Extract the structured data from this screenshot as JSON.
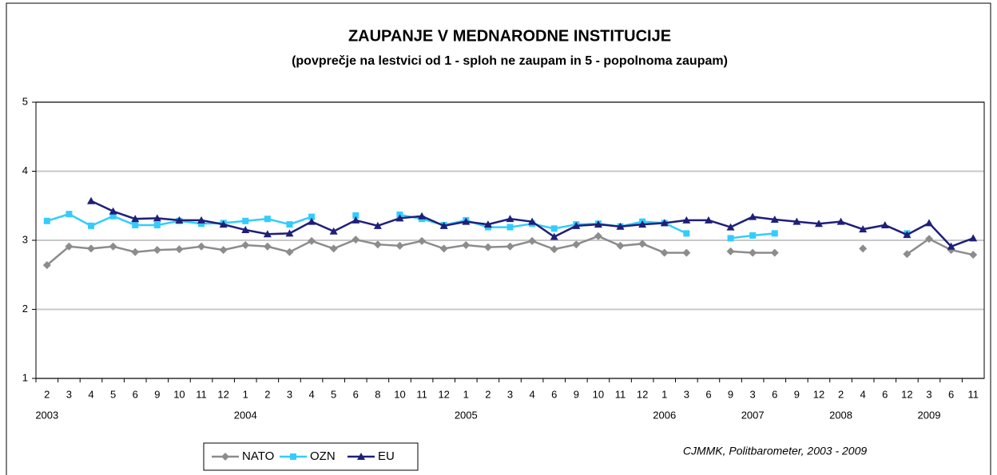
{
  "chart_data": {
    "type": "line",
    "title": "ZAUPANJE V MEDNARODNE INSTITUCIJE",
    "subtitle": "(povprečje na lestvici od 1 - sploh ne zaupam in 5 - popolnoma zaupam)",
    "source": "CJMMK, Politbarometer, 2003 - 2009",
    "categories": [
      "2",
      "3",
      "4",
      "5",
      "6",
      "9",
      "10",
      "11",
      "12",
      "1",
      "2",
      "3",
      "4",
      "5",
      "6",
      "8",
      "10",
      "11",
      "12",
      "1",
      "2",
      "3",
      "4",
      "6",
      "9",
      "10",
      "11",
      "12",
      "1",
      "3",
      "6",
      "9",
      "3",
      "6",
      "9",
      "12",
      "2",
      "4",
      "6",
      "12",
      "3",
      "6",
      "11"
    ],
    "year_labels": [
      "2003",
      null,
      null,
      null,
      null,
      null,
      null,
      null,
      null,
      "2004",
      null,
      null,
      null,
      null,
      null,
      null,
      null,
      null,
      null,
      "2005",
      null,
      null,
      null,
      null,
      null,
      null,
      null,
      null,
      "2006",
      null,
      null,
      null,
      "2007",
      null,
      null,
      null,
      "2008",
      null,
      null,
      null,
      "2009",
      null,
      null
    ],
    "ylim": [
      1,
      5
    ],
    "yticks": [
      1,
      2,
      3,
      4,
      5
    ],
    "grid": true,
    "legend": "bottom-left",
    "series": [
      {
        "name": "NATO",
        "color": "#8c8c8c",
        "marker": "diamond",
        "values": [
          2.64,
          2.91,
          2.88,
          2.91,
          2.83,
          2.86,
          2.87,
          2.91,
          2.86,
          2.93,
          2.91,
          2.83,
          2.99,
          2.88,
          3.01,
          2.94,
          2.92,
          2.99,
          2.88,
          2.93,
          2.9,
          2.91,
          2.99,
          2.87,
          2.94,
          3.06,
          2.92,
          2.95,
          2.82,
          2.82,
          null,
          2.84,
          2.82,
          2.82,
          null,
          null,
          null,
          2.88,
          null,
          2.8,
          3.02,
          2.86,
          2.79
        ]
      },
      {
        "name": "OZN",
        "color": "#33ccff",
        "marker": "square",
        "values": [
          3.28,
          3.38,
          3.21,
          3.35,
          3.22,
          3.22,
          3.28,
          3.24,
          3.25,
          3.28,
          3.31,
          3.23,
          3.34,
          null,
          3.36,
          null,
          3.37,
          3.31,
          3.22,
          3.29,
          3.19,
          3.19,
          3.24,
          3.17,
          3.23,
          3.24,
          3.2,
          3.27,
          3.25,
          3.1,
          null,
          3.03,
          3.07,
          3.1,
          null,
          null,
          null,
          null,
          null,
          3.1,
          null,
          null,
          null
        ]
      },
      {
        "name": "EU",
        "color": "#1f1f7a",
        "marker": "triangle",
        "values": [
          null,
          null,
          3.57,
          3.42,
          3.31,
          3.32,
          3.29,
          3.29,
          3.23,
          3.15,
          3.09,
          3.1,
          3.27,
          3.13,
          3.29,
          3.21,
          3.32,
          3.35,
          3.21,
          3.27,
          3.23,
          3.31,
          3.27,
          3.05,
          3.21,
          3.23,
          3.2,
          3.23,
          3.25,
          3.29,
          3.29,
          3.19,
          3.34,
          3.3,
          3.27,
          3.24,
          3.27,
          3.16,
          3.22,
          3.08,
          3.25,
          2.91,
          3.03
        ]
      }
    ]
  }
}
